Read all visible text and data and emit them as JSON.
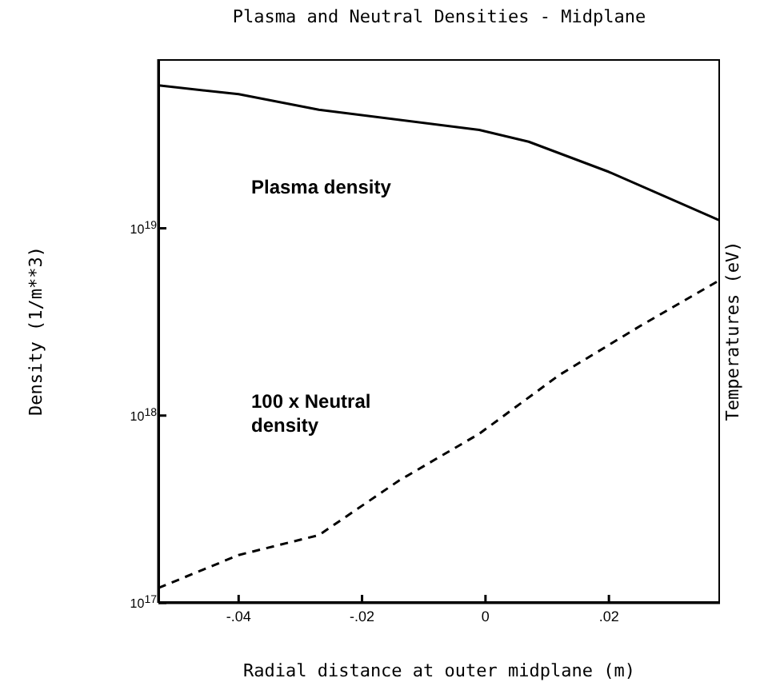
{
  "chart_data": {
    "type": "line",
    "title": "Plasma and Neutral Densities - Midplane",
    "xlabel": "Radial distance at outer midplane (m)",
    "ylabel": "Density (1/m**3)",
    "y2label": "Temperatures (eV)",
    "log": "y",
    "marker": "none",
    "xlim": [
      -0.053,
      0.038
    ],
    "xticks": [
      {
        "value": -0.04,
        "label": "-.04"
      },
      {
        "value": -0.02,
        "label": "-.02"
      },
      0,
      {
        "value": 0.02,
        "label": ".02"
      }
    ],
    "ylim": [
      1e+17,
      8e+19
    ],
    "yticks": [
      {
        "value": 1e+17,
        "label": "10$^{17}$"
      },
      {
        "value": 1e+18,
        "label": "10$^{18}$"
      },
      {
        "value": 1e+19,
        "label": "10$^{19}$"
      }
    ],
    "series": [
      {
        "color": "#000000",
        "line_style": "solid",
        "x": [
          -0.053,
          -0.04,
          -0.027,
          -0.001,
          0.007,
          0.02,
          0.038
        ],
        "values": [
          5.8e+19,
          5.2e+19,
          4.3e+19,
          3.35e+19,
          2.9e+19,
          2e+19,
          1.1e+19
        ]
      },
      {
        "color": "#000000",
        "line_style": "dashed",
        "x": [
          -0.053,
          -0.04,
          -0.027,
          -0.014,
          -0.001,
          0.012,
          0.025,
          0.038
        ],
        "values": [
          1.2e+17,
          1.8e+17,
          2.3e+17,
          4.5e+17,
          8e+17,
          1.65e+18,
          3e+18,
          5.3e+18
        ]
      }
    ],
    "annotations": [
      "Plasma density",
      "100 x Neutral\ndensity"
    ]
  }
}
